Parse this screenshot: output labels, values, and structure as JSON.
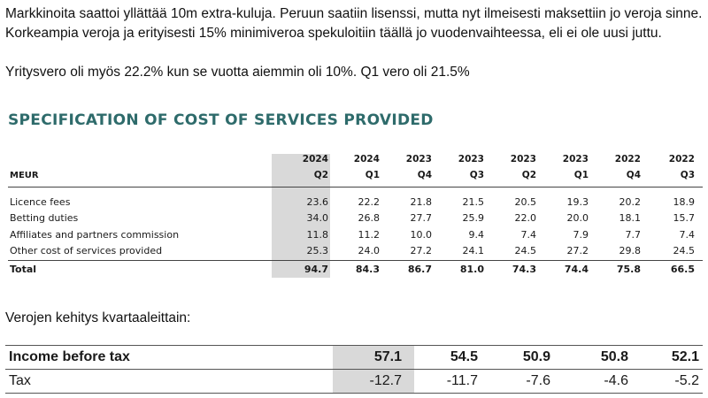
{
  "intro": {
    "line1": "Markkinoita saattoi yllättää 10m extra-kuluja. Peruun saatiin lisenssi, mutta nyt ilmeisesti maksettiin jo veroja sinne. Korkeampia veroja ja erityisesti 15% minimiveroa spekuloitiin täällä jo vuodenvaihteessa, eli ei ole uusi juttu.",
    "line2": "Yritysvero oli myös 22.2% kun se vuotta aiemmin oli 10%. Q1 vero oli 21.5%"
  },
  "spec": {
    "title": "SPECIFICATION OF COST OF SERVICES PROVIDED",
    "unit_label": "MEUR",
    "columns": [
      {
        "year": "2024",
        "quarter": "Q2"
      },
      {
        "year": "2024",
        "quarter": "Q1"
      },
      {
        "year": "2023",
        "quarter": "Q4"
      },
      {
        "year": "2023",
        "quarter": "Q3"
      },
      {
        "year": "2023",
        "quarter": "Q2"
      },
      {
        "year": "2023",
        "quarter": "Q1"
      },
      {
        "year": "2022",
        "quarter": "Q4"
      },
      {
        "year": "2022",
        "quarter": "Q3"
      }
    ],
    "rows": [
      {
        "label": "Licence fees",
        "values": [
          "23.6",
          "22.2",
          "21.8",
          "21.5",
          "20.5",
          "19.3",
          "20.2",
          "18.9"
        ]
      },
      {
        "label": "Betting duties",
        "values": [
          "34.0",
          "26.8",
          "27.7",
          "25.9",
          "22.0",
          "20.0",
          "18.1",
          "15.7"
        ]
      },
      {
        "label": "Affiliates and partners commission",
        "values": [
          "11.8",
          "11.2",
          "10.0",
          "9.4",
          "7.4",
          "7.9",
          "7.7",
          "7.4"
        ]
      },
      {
        "label": "Other cost of services provided",
        "values": [
          "25.3",
          "24.0",
          "27.2",
          "24.1",
          "24.5",
          "27.2",
          "29.8",
          "24.5"
        ]
      }
    ],
    "total": {
      "label": "Total",
      "values": [
        "94.7",
        "84.3",
        "86.7",
        "81.0",
        "74.3",
        "74.4",
        "75.8",
        "66.5"
      ]
    }
  },
  "tax": {
    "heading": "Verojen kehitys kvartaaleittain:",
    "rows": [
      {
        "label": "Income before tax",
        "values": [
          "57.1",
          "54.5",
          "50.9",
          "50.8",
          "52.1"
        ],
        "bold": true
      },
      {
        "label": "Tax",
        "values": [
          "-12.7",
          "-11.7",
          "-7.6",
          "-4.6",
          "-5.2"
        ],
        "bold": false
      }
    ]
  },
  "colors": {
    "title": "#2e6b6b",
    "highlight": "#d9d9d9"
  }
}
